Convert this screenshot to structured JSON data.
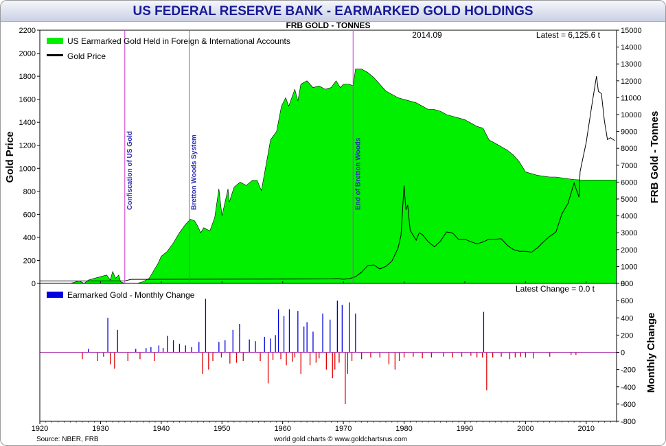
{
  "title": "US FEDERAL RESERVE BANK - EARMARKED GOLD HOLDINGS",
  "subtitle": "FRB GOLD - TONNES",
  "date_label": "2014.09",
  "latest_label": "Latest = 6,125.6 t",
  "latest_change_label": "Latest Change = 0.0 t",
  "source": "Source: NBER, FRB",
  "credit": "world gold charts © www.goldchartsrus.com",
  "colors": {
    "fill": "#00f000",
    "price": "#000000",
    "positive": "#0000e0",
    "negative": "#e00000",
    "event": "#cc33cc",
    "event_text": "#2a2ab0",
    "title": "#1a1a96"
  },
  "chart_data": [
    {
      "type": "area",
      "ylabel_left": "Gold Price",
      "ylabel_right": "FRB Gold - Tonnes",
      "xlim": [
        1920,
        2015
      ],
      "ylim_left": [
        0,
        2200
      ],
      "ylim_right": [
        0,
        15000
      ],
      "x_ticks": [
        1920,
        1930,
        1940,
        1950,
        1960,
        1970,
        1980,
        1990,
        2000,
        2010
      ],
      "y_ticks_left": [
        0,
        200,
        400,
        600,
        800,
        1000,
        1200,
        1400,
        1600,
        1800,
        2000,
        2200
      ],
      "y_ticks_right": [
        0,
        1000,
        2000,
        3000,
        4000,
        5000,
        6000,
        7000,
        8000,
        9000,
        10000,
        11000,
        12000,
        13000,
        14000,
        15000
      ],
      "legend": [
        "US Earmarked Gold Held in Foreign & International Accounts",
        "Gold Price"
      ],
      "legend_position": "top-left",
      "grid": false,
      "events": [
        {
          "x": 1934,
          "label": "Confiscation of US Gold"
        },
        {
          "x": 1944.6,
          "label": "Bretton Woods System"
        },
        {
          "x": 1971.6,
          "label": "End of Bretton Woods"
        }
      ],
      "series": [
        {
          "name": "US Earmarked Gold Held in Foreign & International Accounts",
          "axis": "right",
          "x": [
            1920,
            1925,
            1926.5,
            1927.3,
            1928,
            1929,
            1930,
            1931,
            1931.6,
            1932,
            1932.5,
            1933,
            1933.3,
            1934,
            1935,
            1936,
            1937,
            1938,
            1939,
            1939.5,
            1940,
            1941,
            1942,
            1943,
            1944,
            1944.8,
            1945.5,
            1946,
            1946.5,
            1947,
            1948,
            1948.8,
            1949.5,
            1950,
            1951,
            1951.2,
            1952,
            1953,
            1954,
            1955,
            1955.8,
            1956.5,
            1957,
            1958,
            1959,
            1959.8,
            1960.5,
            1961,
            1962,
            1962.5,
            1963,
            1964,
            1965,
            1966,
            1967,
            1968,
            1968.8,
            1969.5,
            1970,
            1971,
            1971.6,
            1972,
            1973,
            1974,
            1975,
            1976,
            1977,
            1978,
            1979,
            1980,
            1981,
            1982,
            1983,
            1984,
            1985,
            1986,
            1987,
            1988,
            1989,
            1990,
            1991,
            1992,
            1993,
            1994,
            1995,
            1996,
            1997,
            1998,
            1999,
            2000,
            2001,
            2002,
            2003,
            2004,
            2005,
            2006,
            2007,
            2008,
            2009,
            2010,
            2011,
            2012,
            2013,
            2014.75,
            2015
          ],
          "values": [
            0,
            0,
            150,
            0,
            200,
            300,
            400,
            500,
            200,
            700,
            300,
            500,
            100,
            0,
            0,
            0,
            100,
            300,
            900,
            1200,
            1600,
            1900,
            2400,
            3000,
            3500,
            3800,
            3700,
            3400,
            3000,
            3300,
            3100,
            3900,
            5600,
            4000,
            5600,
            4800,
            5700,
            6000,
            5800,
            6100,
            6100,
            5500,
            6500,
            8500,
            9000,
            10500,
            11000,
            10500,
            11500,
            10800,
            11800,
            12000,
            11600,
            11700,
            11500,
            11600,
            12000,
            11600,
            11800,
            11800,
            11700,
            12700,
            12700,
            12500,
            12200,
            11800,
            11400,
            11200,
            11000,
            10900,
            10800,
            10700,
            10500,
            10300,
            10300,
            10200,
            10000,
            9900,
            9800,
            9700,
            9500,
            9300,
            9200,
            8500,
            8300,
            8100,
            7900,
            7600,
            7200,
            6600,
            6500,
            6400,
            6350,
            6300,
            6300,
            6250,
            6200,
            6150,
            6130,
            6126,
            6126,
            6126,
            6126,
            6125.6,
            6125.6
          ]
        },
        {
          "name": "Gold Price",
          "axis": "left",
          "x": [
            1920,
            1934,
            1935,
            1968,
            1969,
            1970,
            1971,
            1972,
            1973,
            1974,
            1975,
            1976,
            1977,
            1978,
            1979,
            1979.5,
            1980,
            1980.3,
            1980.6,
            1981,
            1982,
            1982.5,
            1983,
            1984,
            1985,
            1986,
            1987,
            1988,
            1989,
            1990,
            1991,
            1992,
            1993,
            1994,
            1995,
            1996,
            1997,
            1998,
            1999,
            2000,
            2001,
            2002,
            2003,
            2004,
            2005,
            2006,
            2007,
            2008,
            2008.8,
            2009,
            2010,
            2011,
            2011.7,
            2012,
            2012.5,
            2013,
            2013.5,
            2014,
            2014.7
          ],
          "values": [
            20.67,
            20.67,
            35,
            39,
            41,
            36,
            41,
            58,
            97,
            154,
            161,
            125,
            148,
            193,
            306,
            420,
            850,
            640,
            680,
            460,
            375,
            440,
            424,
            361,
            317,
            368,
            447,
            437,
            381,
            384,
            362,
            344,
            360,
            384,
            384,
            388,
            331,
            294,
            279,
            279,
            271,
            310,
            363,
            409,
            445,
            604,
            695,
            872,
            750,
            972,
            1225,
            1572,
            1800,
            1669,
            1650,
            1411,
            1250,
            1266,
            1241
          ]
        }
      ]
    },
    {
      "type": "bar",
      "ylabel": "Monthly Change",
      "xlim": [
        1920,
        2015
      ],
      "ylim": [
        -800,
        800
      ],
      "y_ticks": [
        -800,
        -600,
        -400,
        -200,
        0,
        200,
        400,
        600,
        800
      ],
      "legend": [
        "Earmarked Gold - Monthly Change"
      ],
      "legend_position": "top-left",
      "series": [
        {
          "name": "Earmarked Gold - Monthly Change",
          "x": [
            1927.0,
            1928.0,
            1929.5,
            1930.5,
            1931.2,
            1931.6,
            1932.3,
            1932.8,
            1934.5,
            1935.8,
            1936.5,
            1937.5,
            1938.3,
            1938.9,
            1939.6,
            1940.3,
            1941.0,
            1942.0,
            1943.0,
            1944.0,
            1945.0,
            1946.2,
            1946.8,
            1947.3,
            1947.8,
            1948.5,
            1949.5,
            1949.9,
            1950.5,
            1951.3,
            1951.8,
            1952.4,
            1952.9,
            1953.5,
            1954.5,
            1955.5,
            1956.3,
            1957.0,
            1957.6,
            1958.0,
            1958.4,
            1958.8,
            1959.3,
            1959.7,
            1960.2,
            1960.6,
            1961.1,
            1961.6,
            1962.0,
            1962.5,
            1963.0,
            1963.5,
            1964.0,
            1964.5,
            1965.0,
            1965.5,
            1966.0,
            1966.6,
            1967.2,
            1967.8,
            1968.2,
            1968.6,
            1969.0,
            1969.3,
            1969.8,
            1970.3,
            1970.7,
            1971.0,
            1971.4,
            1972.0,
            1973.0,
            1974.5,
            1976.0,
            1977.5,
            1978.5,
            1979.2,
            1980.0,
            1981.5,
            1983.0,
            1984.5,
            1986.5,
            1988.0,
            1989.5,
            1991.0,
            1992.0,
            1992.9,
            1993.1,
            1993.6,
            1994.6,
            1996.0,
            1997.4,
            1998.3,
            1999.2,
            2000.0,
            2001.3,
            2004.0,
            2007.5,
            2008.3
          ],
          "values": [
            -80,
            40,
            -100,
            -50,
            400,
            -140,
            -190,
            260,
            -100,
            40,
            -80,
            50,
            60,
            -100,
            80,
            50,
            190,
            140,
            100,
            80,
            60,
            120,
            -250,
            620,
            -200,
            -100,
            120,
            -60,
            140,
            -130,
            260,
            -120,
            330,
            -100,
            150,
            130,
            -100,
            180,
            -360,
            160,
            -90,
            200,
            500,
            -80,
            420,
            -150,
            500,
            -110,
            -60,
            480,
            -250,
            300,
            350,
            -150,
            240,
            -120,
            -70,
            450,
            -200,
            380,
            -300,
            -200,
            600,
            -120,
            550,
            -600,
            -250,
            580,
            -100,
            450,
            -80,
            -60,
            -60,
            -140,
            -200,
            -100,
            -60,
            -50,
            -70,
            -60,
            -50,
            -60,
            -50,
            -40,
            -60,
            -60,
            470,
            -440,
            -60,
            -50,
            -80,
            -60,
            -50,
            -60,
            -70,
            -50,
            -30,
            -30
          ]
        }
      ]
    }
  ]
}
